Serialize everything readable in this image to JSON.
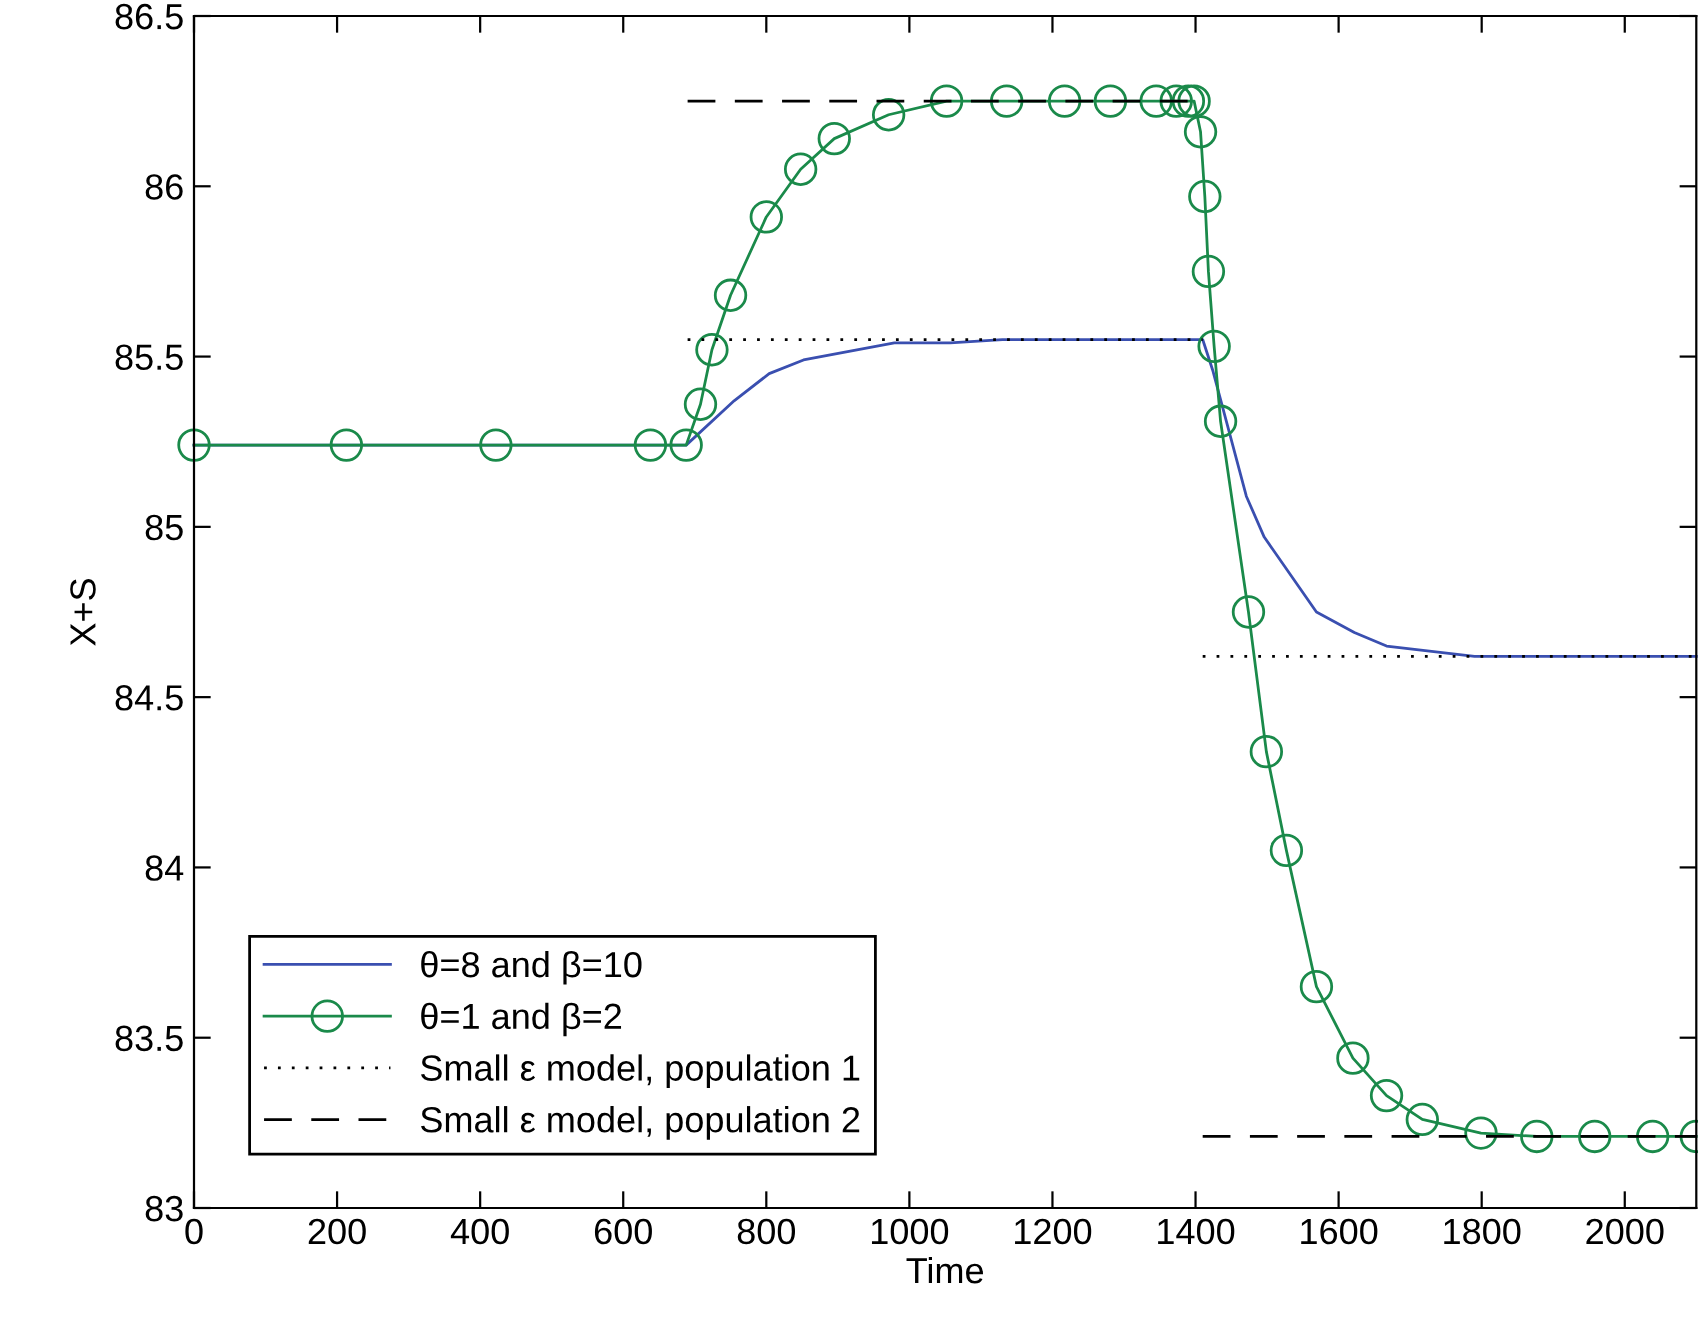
{
  "chart_data": {
    "type": "line",
    "xlabel": "Time",
    "ylabel": "X+S",
    "xlim": [
      0,
      2100
    ],
    "xticks": [
      0,
      200,
      400,
      600,
      800,
      1000,
      1200,
      1400,
      1600,
      1800,
      2000
    ],
    "ylim": [
      83,
      86.5
    ],
    "yticks": [
      83,
      83.5,
      84,
      84.5,
      85,
      85.5,
      86,
      86.5
    ],
    "grid": false,
    "legend": "bottom left",
    "series": [
      {
        "name": "θ=8 and β=10",
        "color": "#3a4fb0",
        "marker": "none",
        "line_style": "solid",
        "x": [
          0,
          688,
          755,
          804,
          852,
          979,
          1057,
          1130,
          1410,
          1424,
          1471,
          1496,
          1569,
          1622,
          1667,
          1790,
          2100
        ],
        "values": [
          85.24,
          85.24,
          85.37,
          85.45,
          85.49,
          85.54,
          85.54,
          85.55,
          85.55,
          85.46,
          85.09,
          84.97,
          84.75,
          84.69,
          84.65,
          84.62,
          84.62
        ]
      },
      {
        "name": "θ=1 and β=2",
        "color": "#1a8a4a",
        "marker": "circle",
        "line_style": "solid",
        "x": [
          0,
          213,
          422,
          638,
          688,
          708,
          724,
          750,
          800,
          848,
          895,
          971,
          1052,
          1136,
          1217,
          1281,
          1345,
          1373,
          1390,
          1398,
          1407,
          1413,
          1418,
          1426,
          1435,
          1474,
          1499,
          1527,
          1569,
          1620,
          1667,
          1717,
          1799,
          1877,
          1958,
          2039,
          2100
        ],
        "values": [
          85.24,
          85.24,
          85.24,
          85.24,
          85.24,
          85.36,
          85.52,
          85.68,
          85.91,
          86.05,
          86.14,
          86.21,
          86.25,
          86.25,
          86.25,
          86.25,
          86.25,
          86.25,
          86.25,
          86.25,
          86.16,
          85.97,
          85.75,
          85.53,
          85.31,
          84.75,
          84.34,
          84.05,
          83.65,
          83.44,
          83.33,
          83.26,
          83.22,
          83.21,
          83.21,
          83.21,
          83.21
        ]
      },
      {
        "name": "Small ε model, population 1",
        "color": "#000000",
        "marker": "none",
        "line_style": "dotted",
        "x": [
          690,
          1410,
          null,
          1410,
          2100
        ],
        "values": [
          85.55,
          85.55,
          null,
          84.62,
          84.62
        ]
      },
      {
        "name": "Small ε model, population 2",
        "color": "#000000",
        "marker": "none",
        "line_style": "dashed",
        "x": [
          690,
          1400,
          null,
          1410,
          2100
        ],
        "values": [
          86.25,
          86.25,
          null,
          83.21,
          83.21
        ]
      }
    ]
  }
}
